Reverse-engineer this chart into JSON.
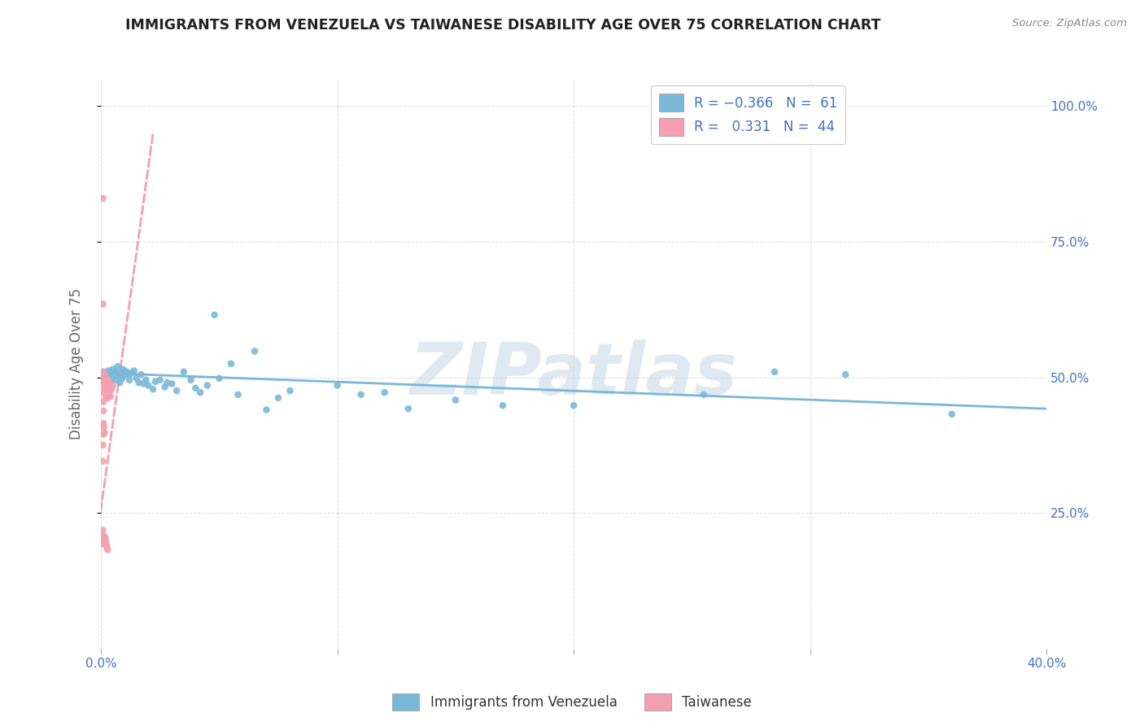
{
  "title": "IMMIGRANTS FROM VENEZUELA VS TAIWANESE DISABILITY AGE OVER 75 CORRELATION CHART",
  "source": "Source: ZipAtlas.com",
  "ylabel": "Disability Age Over 75",
  "xlim": [
    0.0,
    0.4
  ],
  "ylim": [
    0.0,
    1.05
  ],
  "yticks": [
    0.25,
    0.5,
    0.75,
    1.0
  ],
  "ytick_labels": [
    "25.0%",
    "50.0%",
    "75.0%",
    "100.0%"
  ],
  "xticks": [
    0.0,
    0.1,
    0.2,
    0.3,
    0.4
  ],
  "xtick_labels": [
    "0.0%",
    "",
    "",
    "",
    "40.0%"
  ],
  "venezuela_color": "#7ab8d9",
  "taiwan_color": "#f4a0b0",
  "venezuela_scatter": [
    [
      0.001,
      0.51
    ],
    [
      0.002,
      0.505
    ],
    [
      0.002,
      0.495
    ],
    [
      0.003,
      0.512
    ],
    [
      0.003,
      0.498
    ],
    [
      0.004,
      0.508
    ],
    [
      0.004,
      0.492
    ],
    [
      0.005,
      0.515
    ],
    [
      0.005,
      0.5
    ],
    [
      0.006,
      0.51
    ],
    [
      0.006,
      0.495
    ],
    [
      0.007,
      0.508
    ],
    [
      0.007,
      0.52
    ],
    [
      0.008,
      0.502
    ],
    [
      0.008,
      0.49
    ],
    [
      0.009,
      0.515
    ],
    [
      0.009,
      0.498
    ],
    [
      0.01,
      0.512
    ],
    [
      0.01,
      0.505
    ],
    [
      0.011,
      0.51
    ],
    [
      0.012,
      0.495
    ],
    [
      0.012,
      0.505
    ],
    [
      0.013,
      0.508
    ],
    [
      0.014,
      0.512
    ],
    [
      0.015,
      0.498
    ],
    [
      0.016,
      0.49
    ],
    [
      0.017,
      0.505
    ],
    [
      0.018,
      0.488
    ],
    [
      0.019,
      0.495
    ],
    [
      0.02,
      0.485
    ],
    [
      0.022,
      0.478
    ],
    [
      0.023,
      0.492
    ],
    [
      0.025,
      0.495
    ],
    [
      0.027,
      0.482
    ],
    [
      0.028,
      0.49
    ],
    [
      0.03,
      0.488
    ],
    [
      0.032,
      0.475
    ],
    [
      0.035,
      0.51
    ],
    [
      0.038,
      0.495
    ],
    [
      0.04,
      0.48
    ],
    [
      0.042,
      0.472
    ],
    [
      0.045,
      0.485
    ],
    [
      0.048,
      0.615
    ],
    [
      0.05,
      0.498
    ],
    [
      0.055,
      0.525
    ],
    [
      0.058,
      0.468
    ],
    [
      0.065,
      0.548
    ],
    [
      0.07,
      0.44
    ],
    [
      0.075,
      0.462
    ],
    [
      0.08,
      0.475
    ],
    [
      0.1,
      0.485
    ],
    [
      0.11,
      0.468
    ],
    [
      0.12,
      0.472
    ],
    [
      0.13,
      0.442
    ],
    [
      0.15,
      0.458
    ],
    [
      0.17,
      0.448
    ],
    [
      0.2,
      0.448
    ],
    [
      0.255,
      0.468
    ],
    [
      0.285,
      0.51
    ],
    [
      0.315,
      0.505
    ],
    [
      0.36,
      0.432
    ]
  ],
  "taiwan_scatter": [
    [
      0.0008,
      0.83
    ],
    [
      0.0008,
      0.635
    ],
    [
      0.001,
      0.51
    ],
    [
      0.001,
      0.49
    ],
    [
      0.001,
      0.472
    ],
    [
      0.001,
      0.455
    ],
    [
      0.001,
      0.438
    ],
    [
      0.0012,
      0.505
    ],
    [
      0.0012,
      0.488
    ],
    [
      0.0015,
      0.495
    ],
    [
      0.0015,
      0.478
    ],
    [
      0.0018,
      0.502
    ],
    [
      0.002,
      0.495
    ],
    [
      0.002,
      0.478
    ],
    [
      0.002,
      0.462
    ],
    [
      0.0022,
      0.488
    ],
    [
      0.0025,
      0.495
    ],
    [
      0.0025,
      0.478
    ],
    [
      0.0028,
      0.488
    ],
    [
      0.003,
      0.495
    ],
    [
      0.003,
      0.478
    ],
    [
      0.003,
      0.462
    ],
    [
      0.0035,
      0.488
    ],
    [
      0.0035,
      0.472
    ],
    [
      0.004,
      0.482
    ],
    [
      0.004,
      0.465
    ],
    [
      0.0045,
      0.478
    ],
    [
      0.005,
      0.485
    ],
    [
      0.0008,
      0.375
    ],
    [
      0.0008,
      0.345
    ],
    [
      0.001,
      0.415
    ],
    [
      0.001,
      0.395
    ],
    [
      0.0012,
      0.408
    ],
    [
      0.0015,
      0.398
    ],
    [
      0.0008,
      0.218
    ],
    [
      0.0008,
      0.192
    ],
    [
      0.001,
      0.208
    ],
    [
      0.0012,
      0.202
    ],
    [
      0.0015,
      0.195
    ],
    [
      0.0018,
      0.205
    ],
    [
      0.002,
      0.198
    ],
    [
      0.0022,
      0.192
    ],
    [
      0.0025,
      0.188
    ],
    [
      0.0028,
      0.182
    ]
  ],
  "venezuela_trend_x0": 0.0,
  "venezuela_trend_x1": 0.4,
  "venezuela_trend_y0": 0.508,
  "venezuela_trend_y1": 0.442,
  "taiwan_trend_x0": -0.005,
  "taiwan_trend_x1": 0.022,
  "taiwan_trend_y0": 0.1,
  "taiwan_trend_y1": 0.95,
  "legend_label_venezuela": "Immigrants from Venezuela",
  "legend_label_taiwan": "Taiwanese",
  "watermark": "ZIPatlas",
  "background_color": "#ffffff",
  "grid_color": "#d0d0d0",
  "title_color": "#222222",
  "axis_label_color": "#666666",
  "tick_color": "#4472c4",
  "source_color": "#888888"
}
